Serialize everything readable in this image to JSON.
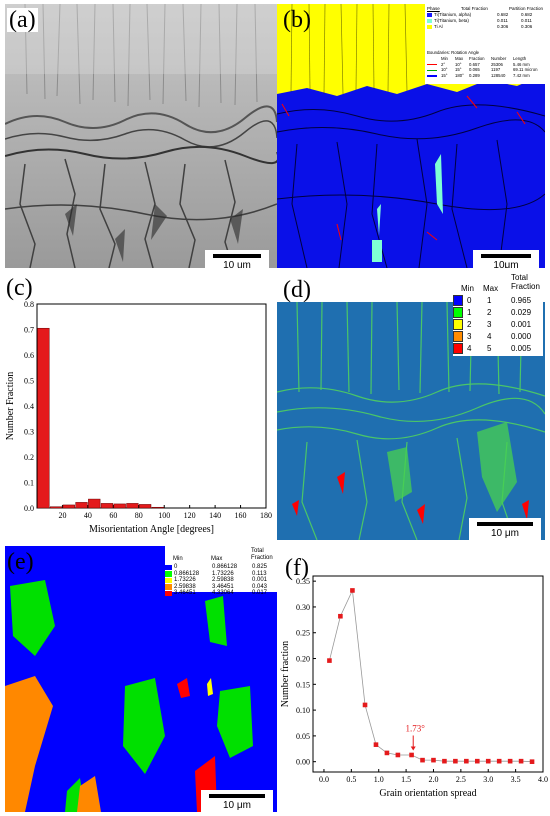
{
  "figure": {
    "panels": {
      "a": {
        "label": "(a)",
        "scale": "10 um"
      },
      "b": {
        "label": "(b)",
        "scale": "10μm",
        "phase_table": {
          "headers": [
            "Phase",
            "Total Fraction",
            "Partition Fraction"
          ],
          "rows": [
            {
              "name": "Ti(Titanium, alpha)",
              "total": "0.682",
              "partition": "0.682",
              "color": "#1a1aff"
            },
            {
              "name": "Ti(Titanium, beta)",
              "total": "0.011",
              "partition": "0.011",
              "color": "#7fffd4"
            },
            {
              "name": "Ti Al",
              "total": "0.306",
              "partition": "0.306",
              "color": "#ffff00"
            }
          ]
        },
        "boundary_table": {
          "title": "Boundaries: Rotation Angle",
          "headers": [
            "Min",
            "Max",
            "Fraction",
            "Number",
            "Length"
          ],
          "rows": [
            {
              "min": "2°",
              "max": "10°",
              "fraction": "0.657",
              "number": "25306",
              "length": "5.46 mm",
              "color": "#ff0000"
            },
            {
              "min": "10°",
              "max": "15°",
              "fraction": "0.065",
              "number": "1197",
              "length": "69.11 micron",
              "color": "#00aa00"
            },
            {
              "min": "15°",
              "max": "180°",
              "fraction": "0.289",
              "number": "128540",
              "length": "7.42 mm",
              "color": "#0000ff"
            }
          ]
        }
      },
      "c": {
        "label": "(c)"
      },
      "d": {
        "label": "(d)",
        "scale": "10 μm",
        "legend": {
          "headers": [
            "Min",
            "Max",
            "Total Fraction"
          ],
          "rows": [
            {
              "min": "0",
              "max": "1",
              "fraction": "0.965",
              "color": "#0000ff"
            },
            {
              "min": "1",
              "max": "2",
              "fraction": "0.029",
              "color": "#00ff00"
            },
            {
              "min": "2",
              "max": "3",
              "fraction": "0.001",
              "color": "#ffff00"
            },
            {
              "min": "3",
              "max": "4",
              "fraction": "0.000",
              "color": "#ff8c00"
            },
            {
              "min": "4",
              "max": "5",
              "fraction": "0.005",
              "color": "#ff0000"
            }
          ]
        }
      },
      "e": {
        "label": "(e)",
        "scale": "10 μm",
        "legend": {
          "headers": [
            "Min",
            "Max",
            "Total Fraction"
          ],
          "rows": [
            {
              "min": "0",
              "max": "0.866128",
              "fraction": "0.825",
              "color": "#0000ff"
            },
            {
              "min": "0.866128",
              "max": "1.73226",
              "fraction": "0.113",
              "color": "#00ff00"
            },
            {
              "min": "1.73226",
              "max": "2.59838",
              "fraction": "0.001",
              "color": "#ffff00"
            },
            {
              "min": "2.59838",
              "max": "3.46451",
              "fraction": "0.043",
              "color": "#ff8c00"
            },
            {
              "min": "3.46451",
              "max": "4.33064",
              "fraction": "0.017",
              "color": "#ff0000"
            }
          ]
        }
      },
      "f": {
        "label": "(f)"
      }
    }
  },
  "chart_data": [
    {
      "type": "bar",
      "panel": "c",
      "xlabel": "Misorientation Angle [degrees]",
      "ylabel": "Number Fraction",
      "xlim": [
        0,
        180
      ],
      "ylim": [
        0,
        0.8
      ],
      "xticks": [
        "20",
        "40",
        "60",
        "80",
        "100",
        "120",
        "140",
        "160",
        "180"
      ],
      "yticks": [
        "0.0",
        "0.1",
        "0.2",
        "0.3",
        "0.4",
        "0.5",
        "0.6",
        "0.7",
        "0.8"
      ],
      "bar_color": "#e41a1c",
      "bins": [
        {
          "x": 5,
          "y": 0.705
        },
        {
          "x": 15,
          "y": 0.005
        },
        {
          "x": 25,
          "y": 0.012
        },
        {
          "x": 35,
          "y": 0.022
        },
        {
          "x": 45,
          "y": 0.035
        },
        {
          "x": 55,
          "y": 0.018
        },
        {
          "x": 65,
          "y": 0.016
        },
        {
          "x": 75,
          "y": 0.018
        },
        {
          "x": 85,
          "y": 0.014
        },
        {
          "x": 95,
          "y": 0.003
        }
      ]
    },
    {
      "type": "scatter",
      "panel": "f",
      "xlabel": "Grain orientation spread",
      "ylabel": "Number fraction",
      "xlim": [
        -0.2,
        4.0
      ],
      "ylim": [
        -0.02,
        0.36
      ],
      "xticks": [
        "0.0",
        "0.5",
        "1.0",
        "1.5",
        "2.0",
        "2.5",
        "3.0",
        "3.5",
        "4.0"
      ],
      "yticks": [
        "0.00",
        "0.05",
        "0.10",
        "0.15",
        "0.20",
        "0.25",
        "0.30",
        "0.35"
      ],
      "marker_color": "#e41a1c",
      "annotation": {
        "text": "1.73°",
        "x": 1.63,
        "y": 0.012
      },
      "points": [
        {
          "x": 0.1,
          "y": 0.196
        },
        {
          "x": 0.3,
          "y": 0.282
        },
        {
          "x": 0.52,
          "y": 0.332
        },
        {
          "x": 0.75,
          "y": 0.11
        },
        {
          "x": 0.95,
          "y": 0.033
        },
        {
          "x": 1.15,
          "y": 0.017
        },
        {
          "x": 1.35,
          "y": 0.013
        },
        {
          "x": 1.6,
          "y": 0.013
        },
        {
          "x": 1.8,
          "y": 0.003
        },
        {
          "x": 2.0,
          "y": 0.003
        },
        {
          "x": 2.2,
          "y": 0.001
        },
        {
          "x": 2.4,
          "y": 0.001
        },
        {
          "x": 2.6,
          "y": 0.001
        },
        {
          "x": 2.8,
          "y": 0.001
        },
        {
          "x": 3.0,
          "y": 0.001
        },
        {
          "x": 3.2,
          "y": 0.001
        },
        {
          "x": 3.4,
          "y": 0.001
        },
        {
          "x": 3.6,
          "y": 0.001
        },
        {
          "x": 3.8,
          "y": 0.0
        }
      ]
    }
  ]
}
